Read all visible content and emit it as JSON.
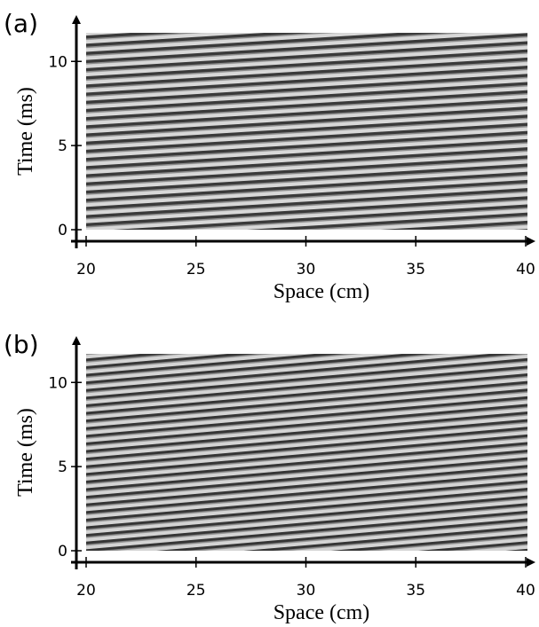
{
  "chart_data": [
    {
      "type": "image",
      "panel_label": "(a)",
      "xlabel": "Space (cm)",
      "ylabel": "Time (ms)",
      "xlim": [
        20,
        40
      ],
      "xticks": [
        20,
        25,
        30,
        35,
        40
      ],
      "ylim": [
        0,
        11.7
      ],
      "yticks": [
        0,
        5,
        10
      ]
    },
    {
      "type": "image",
      "panel_label": "(b)",
      "xlabel": "Space (cm)",
      "ylabel": "Time (ms)",
      "xlim": [
        20,
        40
      ],
      "xticks": [
        20,
        25,
        30,
        35,
        40
      ],
      "ylim": [
        0,
        11.7
      ],
      "yticks": [
        0,
        5,
        10
      ]
    }
  ]
}
